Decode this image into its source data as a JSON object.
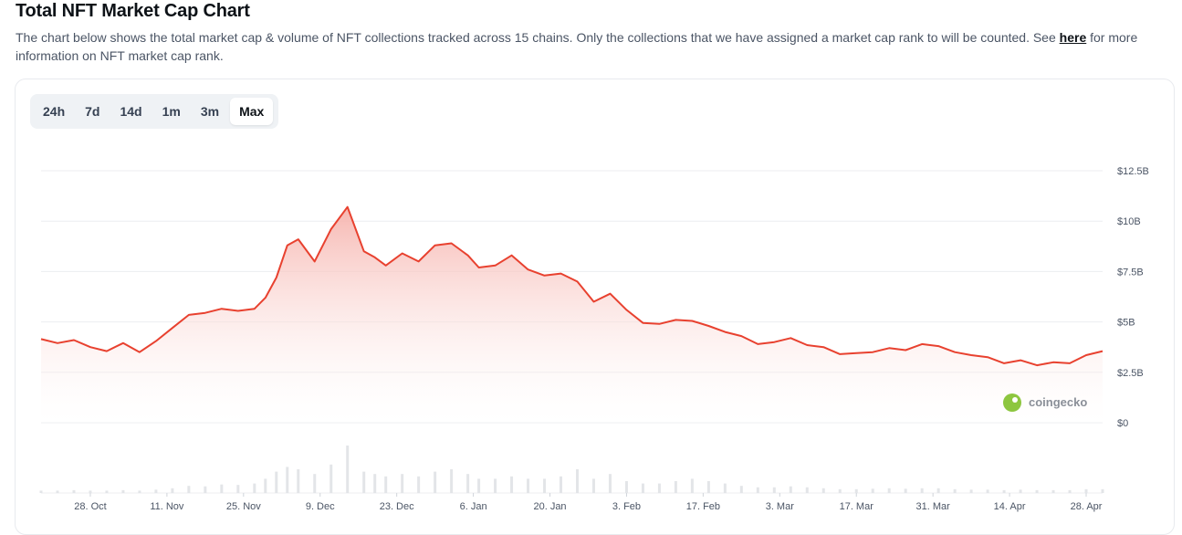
{
  "header": {
    "title": "Total NFT Market Cap Chart",
    "description_before_link": "The chart below shows the total market cap & volume of NFT collections tracked across 15 chains. Only the collections that we have assigned a market cap rank to will be counted. See ",
    "link_text": "here",
    "description_after_link": " for more information on NFT market cap rank."
  },
  "tabs": [
    {
      "label": "24h",
      "active": false
    },
    {
      "label": "7d",
      "active": false
    },
    {
      "label": "14d",
      "active": false
    },
    {
      "label": "1m",
      "active": false
    },
    {
      "label": "3m",
      "active": false
    },
    {
      "label": "Max",
      "active": true
    }
  ],
  "watermark": {
    "text": "coingecko",
    "icon": "coingecko-logo-icon"
  },
  "colors": {
    "line": "#e8412f",
    "area_top": "#f6b3ad",
    "volume_bar": "#e3e5e8",
    "grid": "#eceef1"
  },
  "chart_data": {
    "type": "area",
    "x_tick_labels": [
      "28. Oct",
      "11. Nov",
      "25. Nov",
      "9. Dec",
      "23. Dec",
      "6. Jan",
      "20. Jan",
      "3. Feb",
      "17. Feb",
      "3. Mar",
      "17. Mar",
      "31. Mar",
      "14. Apr",
      "28. Apr"
    ],
    "y_tick_labels": [
      "$0",
      "$2.5B",
      "$5B",
      "$7.5B",
      "$10B",
      "$12.5B"
    ],
    "ylim": [
      0,
      12.5
    ],
    "y_unit": "$B",
    "grid": true,
    "x": [
      "2023-10-19",
      "2023-10-22",
      "2023-10-25",
      "2023-10-28",
      "2023-10-31",
      "2023-11-03",
      "2023-11-06",
      "2023-11-09",
      "2023-11-12",
      "2023-11-15",
      "2023-11-18",
      "2023-11-21",
      "2023-11-24",
      "2023-11-27",
      "2023-11-29",
      "2023-12-01",
      "2023-12-03",
      "2023-12-05",
      "2023-12-08",
      "2023-12-11",
      "2023-12-14",
      "2023-12-17",
      "2023-12-19",
      "2023-12-21",
      "2023-12-24",
      "2023-12-27",
      "2023-12-30",
      "2024-01-02",
      "2024-01-05",
      "2024-01-07",
      "2024-01-10",
      "2024-01-13",
      "2024-01-16",
      "2024-01-19",
      "2024-01-22",
      "2024-01-25",
      "2024-01-28",
      "2024-01-31",
      "2024-02-03",
      "2024-02-06",
      "2024-02-09",
      "2024-02-12",
      "2024-02-15",
      "2024-02-18",
      "2024-02-21",
      "2024-02-24",
      "2024-02-27",
      "2024-03-01",
      "2024-03-04",
      "2024-03-07",
      "2024-03-10",
      "2024-03-13",
      "2024-03-16",
      "2024-03-19",
      "2024-03-22",
      "2024-03-25",
      "2024-03-28",
      "2024-03-31",
      "2024-04-03",
      "2024-04-06",
      "2024-04-09",
      "2024-04-12",
      "2024-04-15",
      "2024-04-18",
      "2024-04-21",
      "2024-04-24",
      "2024-04-27",
      "2024-04-30"
    ],
    "market_cap": [
      4.15,
      3.95,
      4.1,
      3.75,
      3.55,
      3.95,
      3.5,
      4.05,
      4.7,
      5.35,
      5.45,
      5.65,
      5.55,
      5.65,
      6.2,
      7.2,
      8.8,
      9.1,
      8.0,
      9.6,
      10.7,
      8.5,
      8.2,
      7.8,
      8.4,
      8.0,
      8.8,
      8.9,
      8.3,
      7.7,
      7.8,
      8.3,
      7.6,
      7.3,
      7.4,
      7.0,
      6.0,
      6.4,
      5.6,
      4.95,
      4.9,
      5.1,
      5.05,
      4.8,
      4.5,
      4.3,
      3.9,
      4.0,
      4.2,
      3.85,
      3.75,
      3.4,
      3.45,
      3.5,
      3.7,
      3.6,
      3.9,
      3.8,
      3.5,
      3.35,
      3.25,
      2.95,
      3.1,
      2.85,
      3.0,
      2.95,
      3.35,
      3.55
    ],
    "volume": [
      0.05,
      0.05,
      0.06,
      0.05,
      0.05,
      0.06,
      0.05,
      0.07,
      0.1,
      0.15,
      0.14,
      0.18,
      0.17,
      0.2,
      0.3,
      0.45,
      0.55,
      0.5,
      0.4,
      0.6,
      1.0,
      0.45,
      0.4,
      0.35,
      0.4,
      0.35,
      0.45,
      0.5,
      0.4,
      0.3,
      0.3,
      0.35,
      0.3,
      0.3,
      0.35,
      0.5,
      0.3,
      0.4,
      0.25,
      0.2,
      0.2,
      0.25,
      0.3,
      0.25,
      0.2,
      0.15,
      0.12,
      0.12,
      0.14,
      0.12,
      0.1,
      0.08,
      0.08,
      0.09,
      0.1,
      0.09,
      0.1,
      0.1,
      0.08,
      0.07,
      0.07,
      0.06,
      0.07,
      0.06,
      0.06,
      0.06,
      0.08,
      0.08
    ]
  }
}
